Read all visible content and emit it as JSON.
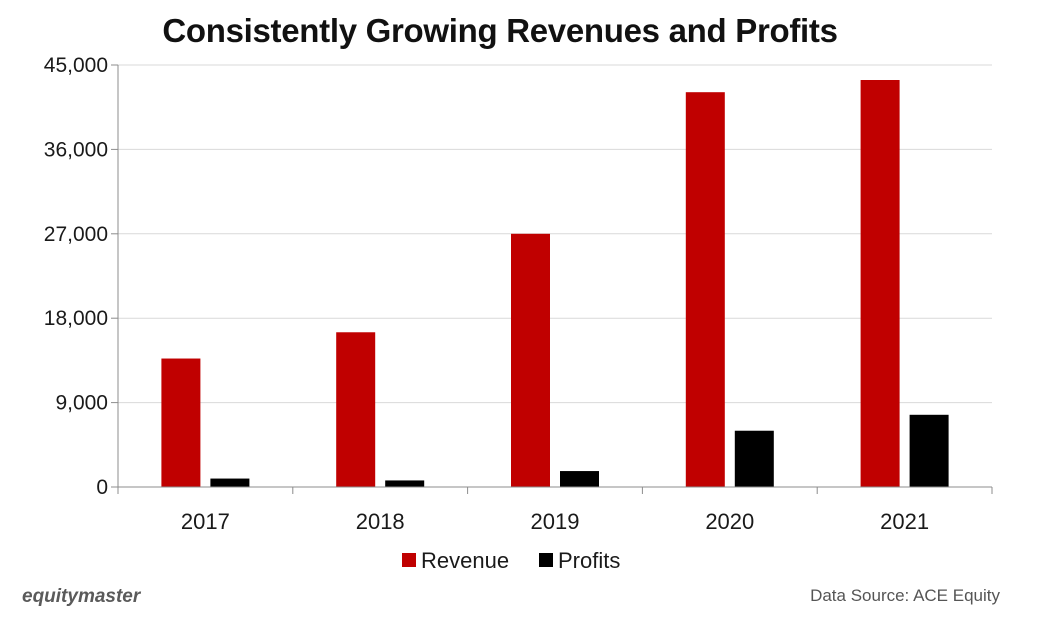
{
  "colors": {
    "revenue": "#c00000",
    "profits": "#000000",
    "grid": "#d9d9d9",
    "axis": "#8c8c8c"
  },
  "chart_data": {
    "type": "bar",
    "title": "Consistently Growing Revenues and Profits",
    "xlabel": "",
    "ylabel": "",
    "categories": [
      "2017",
      "2018",
      "2019",
      "2020",
      "2021"
    ],
    "series": [
      {
        "name": "Revenue",
        "values": [
          13700,
          16500,
          27000,
          42100,
          43400
        ]
      },
      {
        "name": "Profits",
        "values": [
          900,
          700,
          1700,
          6000,
          7700
        ]
      }
    ],
    "ylim": [
      0,
      45000
    ],
    "yticks": [
      0,
      9000,
      18000,
      27000,
      36000,
      45000
    ],
    "ytick_labels": [
      "0",
      "9,000",
      "18,000",
      "27,000",
      "36,000",
      "45,000"
    ],
    "grid": true,
    "legend_position": "bottom"
  },
  "footer": {
    "brand": "equitymaster",
    "source": "Data Source: ACE Equity"
  }
}
